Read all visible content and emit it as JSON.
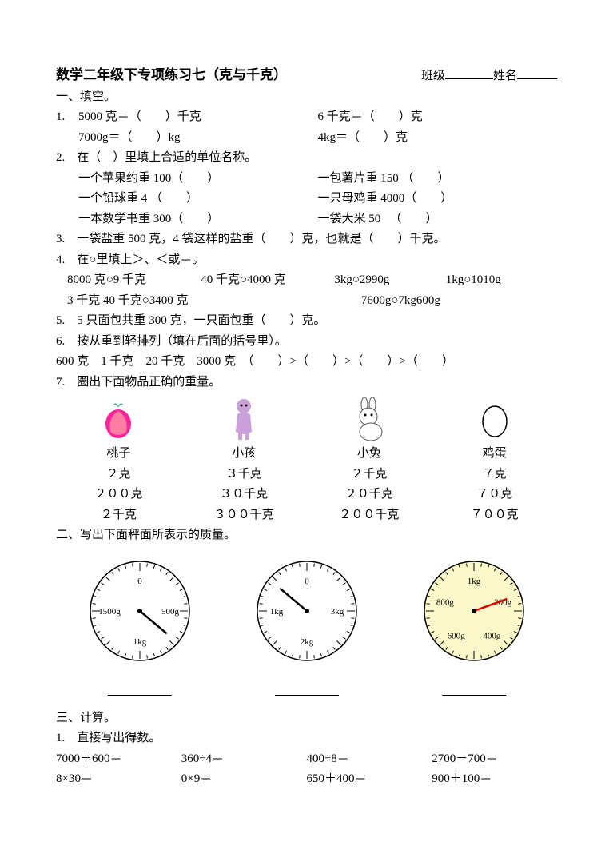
{
  "header": {
    "title": "数学二年级下专项练习七（克与千克）",
    "class_label": "班级",
    "name_label": "姓名"
  },
  "s1": {
    "heading": "一、填空。",
    "q1": {
      "num": "1.",
      "a": "5000 克＝（　　）千克",
      "b": "6 千克＝（　　）克",
      "c": "7000g＝（　　）kg",
      "d": "4kg＝（　　）克"
    },
    "q2": {
      "num": "2.",
      "lead": "在（　）里填上合适的单位名称。",
      "a": "一个苹果约重 100（　　）",
      "b": "一包薯片重 150 （　　）",
      "c": "一个铅球重 4 （　　）",
      "d": "一只母鸡重 4000（　　）",
      "e": "一本数学书重 300（　　）",
      "f": "一袋大米 50 　（　　）"
    },
    "q3": {
      "num": "3.",
      "text": "一袋盐重 500 克，4 袋这样的盐重（　　）克，也就是（　　）千克。"
    },
    "q4": {
      "num": "4.",
      "lead": "在○里填上＞、＜或＝。",
      "a": "8000 克○9 千克",
      "b": "40 千克○4000 克",
      "c": "3kg○2990g",
      "d": "1kg○1010g",
      "e": "3 千克 40 千克○3400 克",
      "f": "7600g○7kg600g"
    },
    "q5": {
      "num": "5.",
      "text": "5 只面包共重 300 克，一只面包重（　　）克。"
    },
    "q6": {
      "num": "6.",
      "lead": "按从重到轻排列（填在后面的括号里）。",
      "items": "600 克　1 千克　20 千克　3000 克　（　　）>（　　）>（　　）>（　　）"
    },
    "q7": {
      "num": "7.",
      "lead": "圈出下面物品正确的重量。",
      "items": [
        {
          "name": "桃子",
          "opts": [
            "２克",
            "２００克",
            "２千克"
          ],
          "color": "#e85a7a"
        },
        {
          "name": "小孩",
          "opts": [
            "３千克",
            "３０千克",
            "３００千克"
          ],
          "color": "#b572c9"
        },
        {
          "name": "小兔",
          "opts": [
            "２千克",
            "２０千克",
            "２００千克"
          ],
          "color": "#888"
        },
        {
          "name": "鸡蛋",
          "opts": [
            "７克",
            "７０克",
            "７００克"
          ],
          "color": "#000"
        }
      ]
    }
  },
  "s2": {
    "heading": "二、写出下面秤面所表示的质量。",
    "scales": [
      {
        "bg": "#ffffff",
        "labels": [
          "0",
          "500g",
          "1kg",
          "1500g"
        ],
        "angle": 130
      },
      {
        "bg": "#ffffff",
        "labels": [
          "0",
          "3kg",
          "2kg",
          "1kg"
        ],
        "angle": -50
      },
      {
        "bg": "#faf7c8",
        "labels": [
          "1kg",
          "200g",
          "400g",
          "600g",
          "800g"
        ],
        "angle": 70,
        "red": true
      }
    ]
  },
  "s3": {
    "heading": "三、计算。",
    "q1": {
      "num": "1.",
      "lead": "直接写出得数。",
      "rows": [
        [
          "7000＋600＝",
          "360÷4＝",
          "400÷8＝",
          "2700－700＝"
        ],
        [
          "8×30＝",
          "0×9＝",
          "650＋400＝",
          "900＋100＝"
        ]
      ]
    }
  }
}
